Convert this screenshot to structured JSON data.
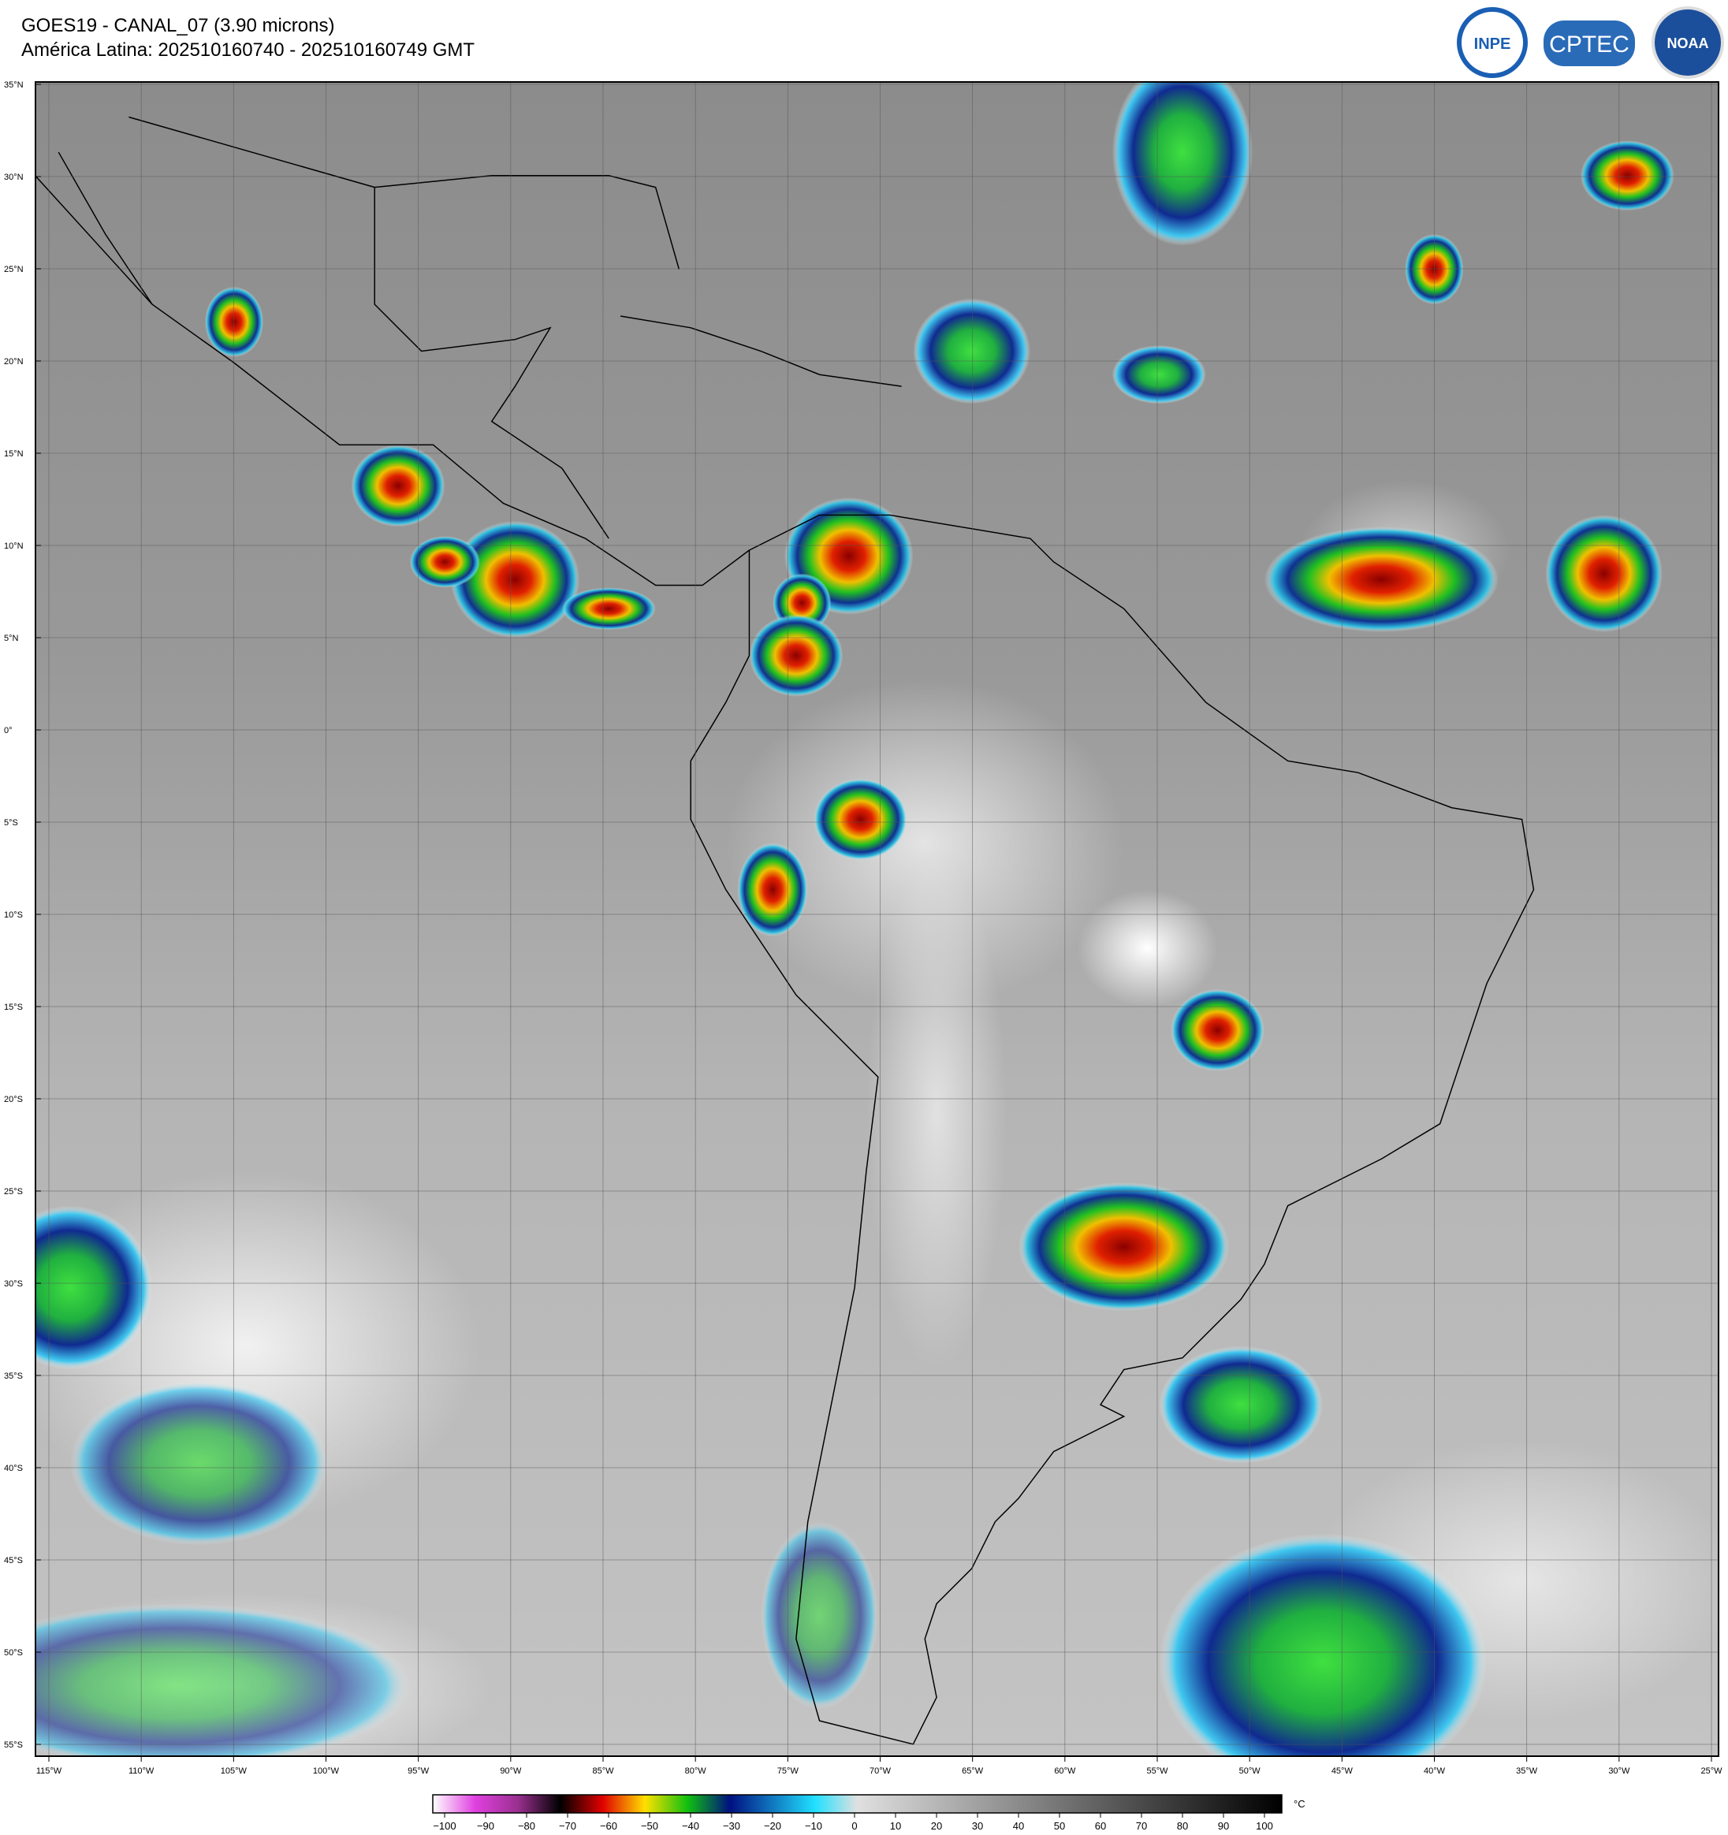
{
  "header": {
    "title": "GOES19 - CANAL_07 (3.90 microns)",
    "subtitle": "América Latina: 202510160740 - 202510160749 GMT"
  },
  "logos": [
    "INPE",
    "CPTEC",
    "NOAA"
  ],
  "map": {
    "lat_labels": [
      "35°N",
      "30°N",
      "25°N",
      "20°N",
      "15°N",
      "10°N",
      "5°N",
      "0°",
      "5°S",
      "10°S",
      "15°S",
      "20°S",
      "25°S",
      "30°S",
      "35°S",
      "40°S",
      "45°S",
      "50°S",
      "55°S"
    ],
    "lon_labels": [
      "115°W",
      "110°W",
      "105°W",
      "100°W",
      "95°W",
      "90°W",
      "85°W",
      "80°W",
      "75°W",
      "70°W",
      "65°W",
      "60°W",
      "55°W",
      "50°W",
      "45°W",
      "40°W",
      "35°W",
      "30°W",
      "25°W"
    ]
  },
  "colorbar": {
    "ticks": [
      "−100",
      "−90",
      "−80",
      "−70",
      "−60",
      "−50",
      "−40",
      "−30",
      "−20",
      "−10",
      "0",
      "10",
      "20",
      "30",
      "40",
      "50",
      "60",
      "70",
      "80",
      "90",
      "100"
    ],
    "unit": "°C"
  }
}
